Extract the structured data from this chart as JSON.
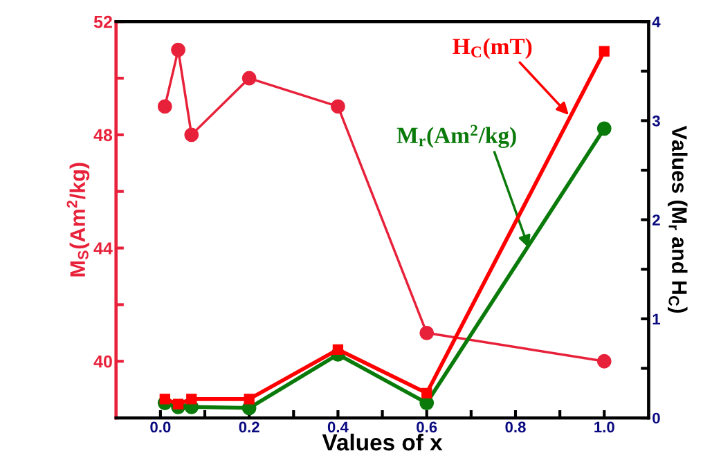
{
  "chart_data": {
    "type": "line",
    "xlabel": "Values of x",
    "ylabel": "M$_{S}$(Am$^{2}$/kg)",
    "y2label": "Values (M$_{r}$ and H$_{C}$)",
    "x": [
      0.01,
      0.04,
      0.07,
      0.2,
      0.4,
      0.6,
      1.0
    ],
    "series": [
      {
        "color": "#e8213a",
        "marker": "circle",
        "values": [
          49,
          51,
          48,
          50,
          49,
          41,
          40
        ]
      },
      {
        "color": "#0a7a0a",
        "marker": "circle",
        "axis": "y2",
        "values": [
          0.15,
          0.11,
          0.11,
          0.1,
          0.64,
          0.15,
          2.92
        ]
      },
      {
        "color": "#ff0000",
        "marker": "square",
        "axis": "y2",
        "values": [
          0.19,
          0.14,
          0.19,
          0.19,
          0.69,
          0.25,
          3.7
        ]
      }
    ],
    "xlim": [
      -0.1,
      1.1
    ],
    "xticks": [
      {
        "value": 0.0,
        "label": "0.0"
      },
      {
        "value": 0.1,
        "label": null
      },
      {
        "value": 0.2,
        "label": "0.2"
      },
      {
        "value": 0.3,
        "label": null
      },
      {
        "value": 0.4,
        "label": "0.4"
      },
      {
        "value": 0.5,
        "label": null
      },
      {
        "value": 0.6,
        "label": "0.6"
      },
      {
        "value": 0.7,
        "label": null
      },
      {
        "value": 0.8,
        "label": "0.8"
      },
      {
        "value": 0.9,
        "label": null
      },
      {
        "value": 1.0,
        "label": "1.0"
      }
    ],
    "ylim": [
      38,
      52
    ],
    "yticks": [
      40,
      {
        "value": 42,
        "label": null
      },
      44,
      {
        "value": 46,
        "label": null
      },
      48,
      {
        "value": 50,
        "label": null
      },
      52
    ],
    "y2lim": [
      0,
      4
    ],
    "y2ticks": [
      0,
      {
        "value": 0.5,
        "label": null
      },
      1,
      {
        "value": 1.5,
        "label": null
      },
      2,
      {
        "value": 2.5,
        "label": null
      },
      3,
      {
        "value": 3.5,
        "label": null
      },
      4
    ],
    "annotations": [
      {
        "text": "H$_{C}$(mT)",
        "x": 0.92,
        "y": 48.7
      },
      {
        "text": "M$_{r}$(Am$^{2}$/kg)",
        "x": 0.83,
        "y": 44.0
      }
    ],
    "grid": false,
    "legend": false,
    "line_style": "solid"
  }
}
